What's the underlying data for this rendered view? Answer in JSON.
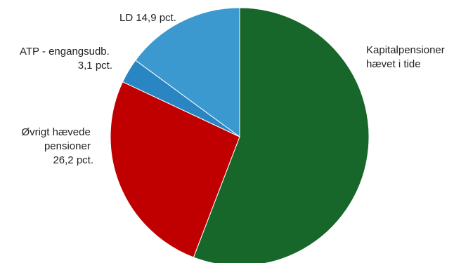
{
  "chart_data": {
    "type": "pie",
    "start_angle_deg": 0,
    "direction": "clockwise",
    "slices": [
      {
        "label_lines": [
          "Kapitalpensioner",
          "hævet i tide"
        ],
        "value": 55.8,
        "color": "#17662a"
      },
      {
        "label_lines": [
          "Øvrigt hævede",
          "pensioner",
          "26,2 pct."
        ],
        "value": 26.2,
        "color": "#c00000"
      },
      {
        "label_lines": [
          "ATP - engangsudb.",
          "3,1 pct."
        ],
        "value": 3.1,
        "color": "#2a86c2"
      },
      {
        "label_lines": [
          "LD 14,9 pct."
        ],
        "value": 14.9,
        "color": "#3b99d0"
      }
    ]
  }
}
